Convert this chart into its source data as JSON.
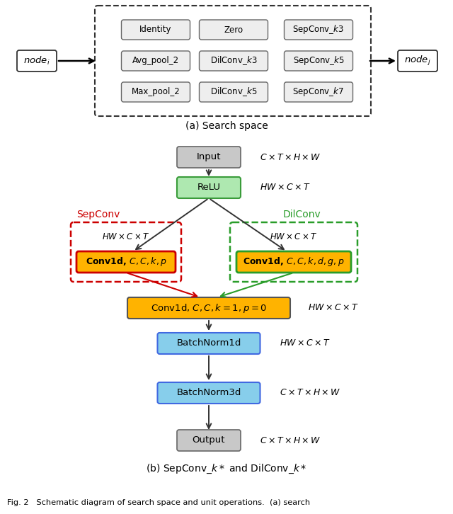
{
  "ops": [
    [
      "Identity",
      "Zero",
      "SepConv_$k$3"
    ],
    [
      "Avg_pool_2",
      "DilConv_$k$3",
      "SepConv_$k$5"
    ],
    [
      "Max_pool_2",
      "DilConv_$k$5",
      "SepConv_$k$7"
    ]
  ],
  "node_i": "$node_i$",
  "node_j": "$node_j$",
  "title_a": "(a) Search space",
  "title_b": "(b) SepConv_$k*$ and DilConv_$k*$",
  "caption": "Fig. 2   Schematic diagram of search space and unit operations.  (a) search",
  "relu_fill": "#aee8b0",
  "relu_edge": "#3a9c3a",
  "orange_fill": "#FFB300",
  "orange_edge": "#555555",
  "blue_fill": "#87CEEB",
  "blue_edge": "#4169E1",
  "gray_fill": "#c8c8c8",
  "gray_edge": "#555555",
  "white_fill": "#ffffff",
  "box_fill": "#e8e8e8",
  "box_edge": "#555555",
  "red": "#cc0000",
  "green": "#2a9d2a",
  "dark": "#111111"
}
